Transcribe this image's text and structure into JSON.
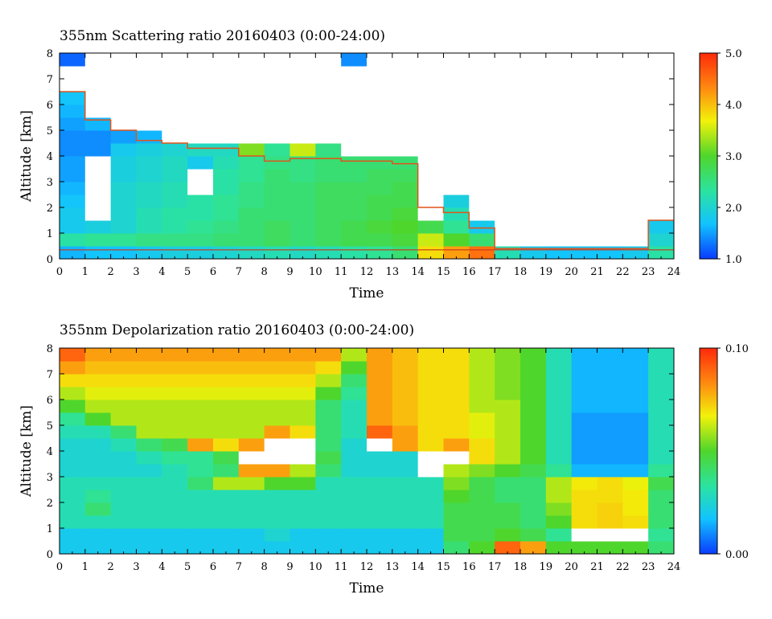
{
  "chart_data": [
    {
      "type": "heatmap",
      "title": "355nm Scattering ratio  20160403 (0:00-24:00)",
      "xlabel": "Time",
      "ylabel": "Altitude [km]",
      "xlim": [
        0,
        24
      ],
      "ylim": [
        0,
        8
      ],
      "x_ticks": [
        "0",
        "1",
        "2",
        "3",
        "4",
        "5",
        "6",
        "7",
        "8",
        "9",
        "10",
        "11",
        "12",
        "13",
        "14",
        "15",
        "16",
        "17",
        "18",
        "19",
        "20",
        "21",
        "22",
        "23",
        "24"
      ],
      "y_ticks": [
        "0",
        "1",
        "2",
        "3",
        "4",
        "5",
        "6",
        "7",
        "8"
      ],
      "colorbar": {
        "min": 1.0,
        "max": 5.0,
        "labels": [
          "1.0",
          "2.0",
          "3.0",
          "4.0",
          "5.0"
        ]
      },
      "colormap": [
        "#0a3cff",
        "#12c3ff",
        "#2be3a0",
        "#4fd62c",
        "#f2f20a",
        "#ff8a10",
        "#ff2a0a"
      ],
      "x_bins": [
        0,
        1,
        2,
        3,
        4,
        5,
        6,
        7,
        8,
        9,
        10,
        11,
        12,
        13,
        14,
        15,
        16,
        17,
        18,
        19,
        20,
        21,
        22,
        23
      ],
      "y_bins": [
        0.25,
        0.75,
        1.25,
        1.75,
        2.25,
        2.75,
        3.25,
        3.75,
        4.25,
        4.75,
        5.25,
        5.75,
        6.25,
        6.75,
        7.25,
        7.75
      ],
      "cloud_top_km": [
        6.5,
        5.4,
        5.0,
        4.6,
        4.5,
        4.3,
        4.3,
        4.0,
        3.8,
        3.9,
        3.9,
        3.8,
        3.8,
        3.7,
        2.0,
        1.8,
        1.2,
        0.4,
        0.4,
        0.4,
        0.4,
        0.4,
        0.4,
        1.5
      ],
      "values": [
        [
          1.6,
          1.7,
          1.7,
          1.8,
          1.9,
          1.9,
          2.0,
          2.1,
          2.2,
          2.1,
          2.2,
          2.3,
          2.4,
          2.6,
          3.8,
          4.2,
          4.5,
          2.2,
          1.8,
          1.7,
          1.7,
          1.7,
          1.8,
          2.3
        ],
        [
          2.3,
          2.4,
          2.4,
          2.5,
          2.5,
          2.5,
          2.6,
          2.6,
          2.7,
          2.6,
          2.7,
          2.8,
          2.8,
          2.9,
          3.5,
          3.0,
          2.6,
          1.0,
          1.0,
          1.0,
          1.0,
          1.0,
          1.0,
          2.0
        ],
        [
          1.8,
          1.9,
          2.0,
          2.2,
          2.3,
          2.4,
          2.5,
          2.6,
          2.7,
          2.6,
          2.7,
          2.8,
          2.9,
          3.0,
          2.8,
          2.4,
          1.8,
          1.0,
          1.0,
          1.0,
          1.0,
          1.0,
          1.0,
          1.8
        ],
        [
          1.8,
          1.0,
          2.0,
          2.2,
          2.3,
          2.3,
          2.4,
          2.6,
          2.6,
          2.6,
          2.7,
          2.7,
          2.8,
          2.9,
          1.0,
          2.2,
          1.0,
          1.0,
          1.0,
          1.0,
          1.0,
          1.0,
          1.0,
          1.0
        ],
        [
          1.7,
          1.0,
          2.0,
          2.1,
          2.2,
          2.3,
          2.4,
          2.5,
          2.6,
          2.6,
          2.7,
          2.7,
          2.8,
          2.8,
          1.0,
          1.9,
          1.0,
          1.0,
          1.0,
          1.0,
          1.0,
          1.0,
          1.0,
          1.0
        ],
        [
          1.6,
          1.0,
          2.0,
          2.1,
          2.2,
          1.0,
          2.3,
          2.5,
          2.6,
          2.6,
          2.7,
          2.7,
          2.7,
          2.8,
          1.0,
          1.0,
          1.0,
          1.0,
          1.0,
          1.0,
          1.0,
          1.0,
          1.0,
          1.0
        ],
        [
          1.5,
          1.0,
          1.9,
          2.0,
          2.1,
          1.0,
          2.3,
          2.4,
          2.6,
          2.5,
          2.6,
          2.6,
          2.7,
          2.7,
          1.0,
          1.0,
          1.0,
          1.0,
          1.0,
          1.0,
          1.0,
          1.0,
          1.0,
          1.0
        ],
        [
          1.5,
          1.0,
          1.9,
          2.0,
          2.1,
          1.8,
          2.2,
          2.4,
          2.5,
          2.5,
          2.6,
          2.6,
          2.6,
          2.6,
          1.0,
          1.0,
          1.0,
          1.0,
          1.0,
          1.0,
          1.0,
          1.0,
          1.0,
          1.0
        ],
        [
          1.4,
          1.4,
          1.8,
          1.9,
          2.0,
          2.1,
          2.1,
          3.2,
          2.4,
          3.5,
          2.5,
          1.0,
          1.0,
          1.0,
          1.0,
          1.0,
          1.0,
          1.0,
          1.0,
          1.0,
          1.0,
          1.0,
          1.0,
          1.0
        ],
        [
          1.4,
          1.4,
          1.5,
          1.6,
          1.0,
          1.0,
          1.0,
          1.0,
          1.0,
          1.0,
          1.0,
          1.0,
          1.0,
          1.0,
          1.0,
          1.0,
          1.0,
          1.0,
          1.0,
          1.0,
          1.0,
          1.0,
          1.0,
          1.0
        ],
        [
          1.5,
          1.6,
          1.0,
          1.0,
          1.0,
          1.0,
          1.0,
          1.0,
          1.0,
          1.0,
          1.0,
          1.0,
          1.0,
          1.0,
          1.0,
          1.0,
          1.0,
          1.0,
          1.0,
          1.0,
          1.0,
          1.0,
          1.0,
          1.0
        ],
        [
          1.6,
          1.0,
          1.0,
          1.0,
          1.0,
          1.0,
          1.0,
          1.0,
          1.0,
          1.0,
          1.0,
          1.0,
          1.0,
          1.0,
          1.0,
          1.0,
          1.0,
          1.0,
          1.0,
          1.0,
          1.0,
          1.0,
          1.0,
          1.0
        ],
        [
          1.7,
          1.0,
          1.0,
          1.0,
          1.0,
          1.0,
          1.0,
          1.0,
          1.0,
          1.0,
          1.0,
          1.0,
          1.0,
          1.0,
          1.0,
          1.0,
          1.0,
          1.0,
          1.0,
          1.0,
          1.0,
          1.0,
          1.0,
          1.0
        ],
        [
          1.0,
          1.0,
          1.0,
          1.0,
          1.0,
          1.0,
          1.0,
          1.0,
          1.0,
          1.0,
          1.0,
          1.0,
          1.0,
          1.0,
          1.0,
          1.0,
          1.0,
          1.0,
          1.0,
          1.0,
          1.0,
          1.0,
          1.0,
          1.0
        ],
        [
          1.0,
          1.0,
          1.0,
          1.0,
          1.0,
          1.0,
          1.0,
          1.0,
          1.0,
          1.0,
          1.0,
          1.0,
          1.0,
          1.0,
          1.0,
          1.0,
          1.0,
          1.0,
          1.0,
          1.0,
          1.0,
          1.0,
          1.0,
          1.0
        ],
        [
          1.2,
          1.0,
          1.0,
          1.0,
          1.0,
          1.0,
          1.0,
          1.0,
          1.0,
          1.0,
          1.0,
          1.4,
          1.0,
          1.0,
          1.0,
          1.0,
          1.0,
          1.0,
          1.0,
          1.0,
          1.0,
          1.0,
          1.0,
          1.0
        ]
      ]
    },
    {
      "type": "heatmap",
      "title": "355nm Depolarization ratio  20160403 (0:00-24:00)",
      "xlabel": "Time",
      "ylabel": "Altitude [km]",
      "xlim": [
        0,
        24
      ],
      "ylim": [
        0,
        8
      ],
      "x_ticks": [
        "0",
        "1",
        "2",
        "3",
        "4",
        "5",
        "6",
        "7",
        "8",
        "9",
        "10",
        "11",
        "12",
        "13",
        "14",
        "15",
        "16",
        "17",
        "18",
        "19",
        "20",
        "21",
        "22",
        "23",
        "24"
      ],
      "y_ticks": [
        "0",
        "1",
        "2",
        "3",
        "4",
        "5",
        "6",
        "7",
        "8"
      ],
      "colorbar": {
        "min": 0.0,
        "max": 0.1,
        "labels": [
          "0.00",
          "0.10"
        ]
      },
      "colormap": [
        "#0a3cff",
        "#12c3ff",
        "#2be3a0",
        "#4fd62c",
        "#f2f20a",
        "#ff8a10",
        "#ff2a0a"
      ],
      "x_bins": [
        0,
        1,
        2,
        3,
        4,
        5,
        6,
        7,
        8,
        9,
        10,
        11,
        12,
        13,
        14,
        15,
        16,
        17,
        18,
        19,
        20,
        21,
        22,
        23
      ],
      "y_bins": [
        0.25,
        0.75,
        1.25,
        1.75,
        2.25,
        2.75,
        3.25,
        3.75,
        4.25,
        4.75,
        5.25,
        5.75,
        6.25,
        6.75,
        7.25,
        7.75
      ],
      "values": [
        [
          0.02,
          0.02,
          0.02,
          0.02,
          0.02,
          0.02,
          0.02,
          0.02,
          0.02,
          0.02,
          0.02,
          0.02,
          0.02,
          0.02,
          0.02,
          0.04,
          0.05,
          0.09,
          0.08,
          0.05,
          0.05,
          0.05,
          0.05,
          0.04
        ],
        [
          0.02,
          0.02,
          0.02,
          0.02,
          0.02,
          0.02,
          0.02,
          0.02,
          0.025,
          0.02,
          0.02,
          0.02,
          0.02,
          0.02,
          0.02,
          0.045,
          0.045,
          0.05,
          0.045,
          0.035,
          0.1,
          0.1,
          0.1,
          0.035
        ],
        [
          0.03,
          0.03,
          0.03,
          0.03,
          0.03,
          0.03,
          0.03,
          0.03,
          0.03,
          0.03,
          0.03,
          0.03,
          0.03,
          0.03,
          0.03,
          0.045,
          0.045,
          0.045,
          0.04,
          0.05,
          0.07,
          0.072,
          0.07,
          0.04
        ],
        [
          0.03,
          0.04,
          0.03,
          0.03,
          0.03,
          0.03,
          0.03,
          0.03,
          0.03,
          0.03,
          0.03,
          0.03,
          0.03,
          0.03,
          0.03,
          0.045,
          0.045,
          0.045,
          0.04,
          0.055,
          0.07,
          0.072,
          0.068,
          0.04
        ],
        [
          0.03,
          0.035,
          0.03,
          0.03,
          0.03,
          0.03,
          0.03,
          0.03,
          0.03,
          0.03,
          0.03,
          0.03,
          0.03,
          0.03,
          0.03,
          0.05,
          0.045,
          0.04,
          0.04,
          0.06,
          0.07,
          0.07,
          0.068,
          0.04
        ],
        [
          0.03,
          0.03,
          0.03,
          0.03,
          0.03,
          0.04,
          0.06,
          0.06,
          0.05,
          0.05,
          0.03,
          0.03,
          0.03,
          0.03,
          0.03,
          0.055,
          0.045,
          0.04,
          0.04,
          0.06,
          0.068,
          0.07,
          0.066,
          0.045
        ],
        [
          0.025,
          0.025,
          0.025,
          0.025,
          0.03,
          0.035,
          0.04,
          0.08,
          0.08,
          0.06,
          0.04,
          0.025,
          0.025,
          0.025,
          0.1,
          0.06,
          0.055,
          0.05,
          0.045,
          0.035,
          0.015,
          0.015,
          0.015,
          0.035
        ],
        [
          0.025,
          0.025,
          0.025,
          0.03,
          0.035,
          0.035,
          0.045,
          0.1,
          0.1,
          0.1,
          0.045,
          0.025,
          0.025,
          0.025,
          0.1,
          0.1,
          0.07,
          0.06,
          0.05,
          0.03,
          0.012,
          0.012,
          0.012,
          0.03
        ],
        [
          0.025,
          0.025,
          0.03,
          0.04,
          0.045,
          0.08,
          0.07,
          0.08,
          0.1,
          0.1,
          0.04,
          0.025,
          0.1,
          0.08,
          0.07,
          0.08,
          0.07,
          0.06,
          0.05,
          0.03,
          0.012,
          0.012,
          0.012,
          0.03
        ],
        [
          0.03,
          0.03,
          0.04,
          0.06,
          0.06,
          0.06,
          0.06,
          0.06,
          0.08,
          0.07,
          0.04,
          0.03,
          0.09,
          0.08,
          0.07,
          0.07,
          0.065,
          0.06,
          0.05,
          0.03,
          0.012,
          0.012,
          0.012,
          0.03
        ],
        [
          0.035,
          0.05,
          0.06,
          0.06,
          0.06,
          0.06,
          0.06,
          0.06,
          0.06,
          0.06,
          0.04,
          0.03,
          0.08,
          0.075,
          0.07,
          0.07,
          0.065,
          0.06,
          0.05,
          0.03,
          0.012,
          0.012,
          0.012,
          0.03
        ],
        [
          0.05,
          0.06,
          0.06,
          0.06,
          0.06,
          0.06,
          0.06,
          0.06,
          0.06,
          0.06,
          0.04,
          0.03,
          0.08,
          0.075,
          0.07,
          0.07,
          0.06,
          0.06,
          0.05,
          0.03,
          0.015,
          0.015,
          0.015,
          0.03
        ],
        [
          0.06,
          0.065,
          0.065,
          0.065,
          0.065,
          0.065,
          0.065,
          0.065,
          0.065,
          0.065,
          0.05,
          0.035,
          0.08,
          0.075,
          0.07,
          0.07,
          0.06,
          0.055,
          0.05,
          0.03,
          0.015,
          0.015,
          0.015,
          0.03
        ],
        [
          0.07,
          0.07,
          0.07,
          0.07,
          0.07,
          0.07,
          0.07,
          0.07,
          0.07,
          0.07,
          0.06,
          0.04,
          0.08,
          0.075,
          0.07,
          0.07,
          0.06,
          0.055,
          0.05,
          0.03,
          0.015,
          0.015,
          0.015,
          0.03
        ],
        [
          0.08,
          0.075,
          0.075,
          0.075,
          0.075,
          0.075,
          0.075,
          0.075,
          0.075,
          0.075,
          0.07,
          0.05,
          0.08,
          0.075,
          0.07,
          0.07,
          0.06,
          0.055,
          0.05,
          0.03,
          0.015,
          0.015,
          0.015,
          0.03
        ],
        [
          0.09,
          0.08,
          0.08,
          0.08,
          0.08,
          0.08,
          0.08,
          0.08,
          0.08,
          0.08,
          0.08,
          0.06,
          0.08,
          0.075,
          0.07,
          0.07,
          0.06,
          0.055,
          0.05,
          0.03,
          0.015,
          0.015,
          0.015,
          0.03
        ]
      ]
    }
  ]
}
